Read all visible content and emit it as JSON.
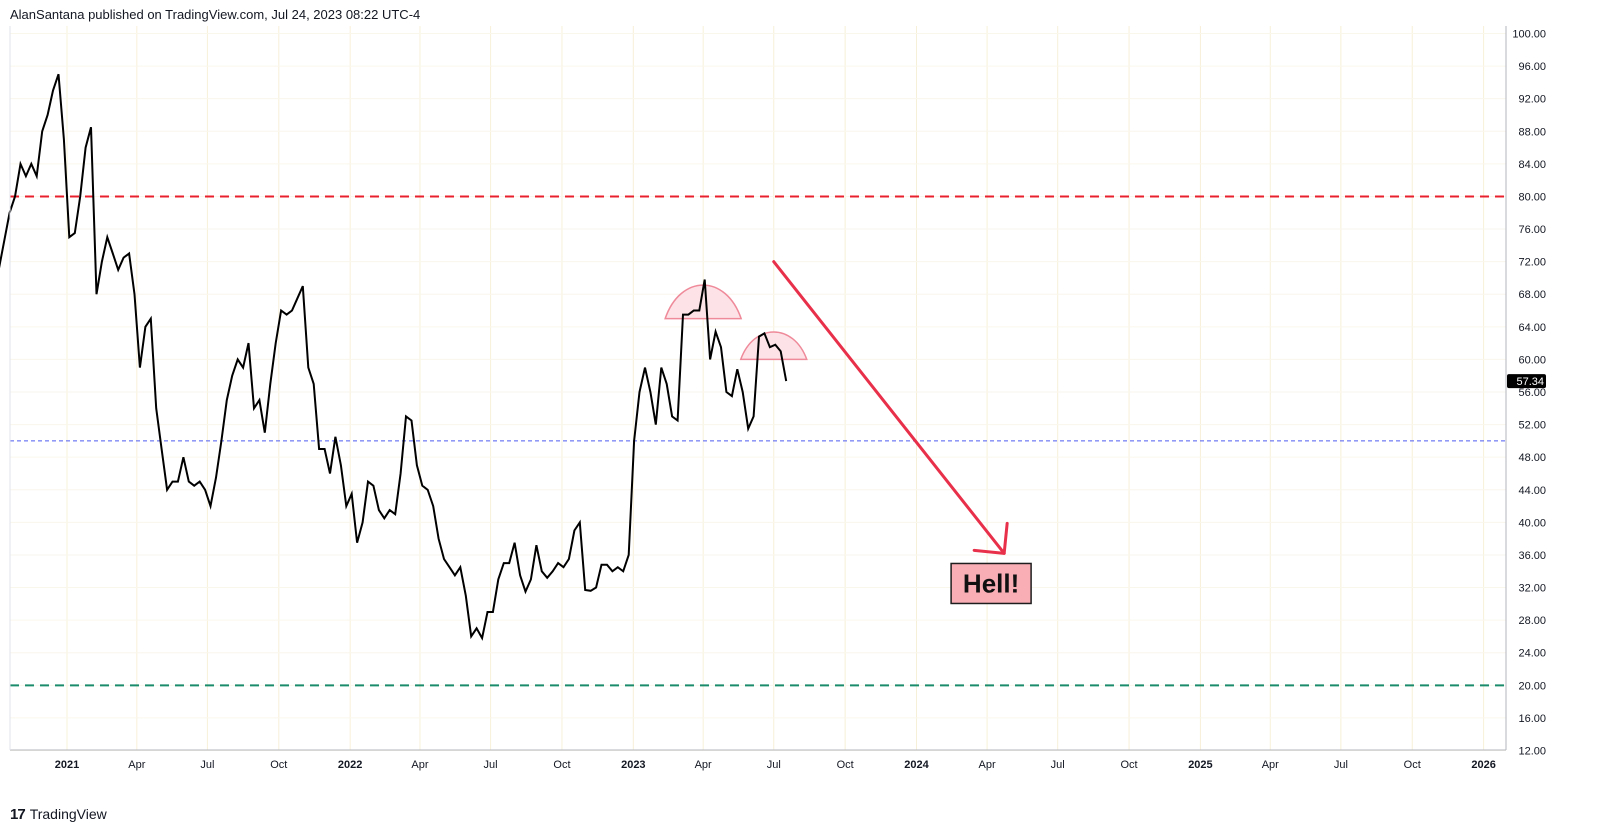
{
  "header": {
    "text": "AlanSantana published on TradingView.com, Jul 24, 2023 08:22 UTC-4"
  },
  "footer": {
    "logo": "17",
    "brand": "TradingView"
  },
  "colors": {
    "price_line": "#000000",
    "overbought": "#e8202e",
    "midline": "#4f5cf0",
    "oversold": "#1a8b6b",
    "arrow": "#e8304a",
    "arc_fill": "#fde3e8",
    "arc_stroke": "#ef8a9a",
    "label_bg": "#f9aeb6",
    "grid": "#f7f0d8"
  },
  "chart_data": {
    "type": "line",
    "x_unit": "date",
    "ylim": [
      12,
      100
    ],
    "y_ticks": [
      "100.00",
      "96.00",
      "92.00",
      "88.00",
      "84.00",
      "80.00",
      "76.00",
      "72.00",
      "68.00",
      "64.00",
      "60.00",
      "56.00",
      "52.00",
      "48.00",
      "44.00",
      "40.00",
      "36.00",
      "32.00",
      "28.00",
      "24.00",
      "20.00",
      "16.00",
      "12.00"
    ],
    "x_ticks": [
      {
        "date": "2021-01-01",
        "label": "2021",
        "bold": true
      },
      {
        "date": "2021-04-01",
        "label": "Apr",
        "bold": false
      },
      {
        "date": "2021-07-01",
        "label": "Jul",
        "bold": false
      },
      {
        "date": "2021-10-01",
        "label": "Oct",
        "bold": false
      },
      {
        "date": "2022-01-01",
        "label": "2022",
        "bold": true
      },
      {
        "date": "2022-04-01",
        "label": "Apr",
        "bold": false
      },
      {
        "date": "2022-07-01",
        "label": "Jul",
        "bold": false
      },
      {
        "date": "2022-10-01",
        "label": "Oct",
        "bold": false
      },
      {
        "date": "2023-01-01",
        "label": "2023",
        "bold": true
      },
      {
        "date": "2023-04-01",
        "label": "Apr",
        "bold": false
      },
      {
        "date": "2023-07-01",
        "label": "Jul",
        "bold": false
      },
      {
        "date": "2023-10-01",
        "label": "Oct",
        "bold": false
      },
      {
        "date": "2024-01-01",
        "label": "2024",
        "bold": true
      },
      {
        "date": "2024-04-01",
        "label": "Apr",
        "bold": false
      },
      {
        "date": "2024-07-01",
        "label": "Jul",
        "bold": false
      },
      {
        "date": "2024-10-01",
        "label": "Oct",
        "bold": false
      },
      {
        "date": "2025-01-01",
        "label": "2025",
        "bold": true
      },
      {
        "date": "2025-04-01",
        "label": "Apr",
        "bold": false
      },
      {
        "date": "2025-07-01",
        "label": "Jul",
        "bold": false
      },
      {
        "date": "2025-10-01",
        "label": "Oct",
        "bold": false
      },
      {
        "date": "2026-01-01",
        "label": "2026",
        "bold": true
      }
    ],
    "series": [
      {
        "points": [
          [
            "2020-10-05",
            71
          ],
          [
            "2020-10-19",
            78
          ],
          [
            "2020-10-26",
            80
          ],
          [
            "2020-11-02",
            84
          ],
          [
            "2020-11-09",
            82.5
          ],
          [
            "2020-11-16",
            84
          ],
          [
            "2020-11-23",
            82.5
          ],
          [
            "2020-11-30",
            88
          ],
          [
            "2020-12-07",
            90
          ],
          [
            "2020-12-14",
            93
          ],
          [
            "2020-12-21",
            95
          ],
          [
            "2020-12-28",
            87
          ],
          [
            "2021-01-04",
            75
          ],
          [
            "2021-01-11",
            75.5
          ],
          [
            "2021-01-18",
            80
          ],
          [
            "2021-01-25",
            86
          ],
          [
            "2021-02-01",
            88.5
          ],
          [
            "2021-02-08",
            68
          ],
          [
            "2021-02-15",
            72
          ],
          [
            "2021-02-22",
            75
          ],
          [
            "2021-03-01",
            73
          ],
          [
            "2021-03-08",
            71
          ],
          [
            "2021-03-15",
            72.5
          ],
          [
            "2021-03-22",
            73
          ],
          [
            "2021-03-29",
            68
          ],
          [
            "2021-04-05",
            59
          ],
          [
            "2021-04-12",
            64
          ],
          [
            "2021-04-19",
            65
          ],
          [
            "2021-04-26",
            54
          ],
          [
            "2021-05-03",
            49
          ],
          [
            "2021-05-10",
            44
          ],
          [
            "2021-05-17",
            45
          ],
          [
            "2021-05-24",
            45
          ],
          [
            "2021-05-31",
            48
          ],
          [
            "2021-06-07",
            45
          ],
          [
            "2021-06-14",
            44.5
          ],
          [
            "2021-06-21",
            45
          ],
          [
            "2021-06-28",
            44
          ],
          [
            "2021-07-05",
            42
          ],
          [
            "2021-07-12",
            45.5
          ],
          [
            "2021-07-19",
            50
          ],
          [
            "2021-07-26",
            55
          ],
          [
            "2021-08-02",
            58
          ],
          [
            "2021-08-09",
            60
          ],
          [
            "2021-08-16",
            59
          ],
          [
            "2021-08-23",
            62
          ],
          [
            "2021-08-30",
            54
          ],
          [
            "2021-09-06",
            55
          ],
          [
            "2021-09-13",
            51
          ],
          [
            "2021-09-20",
            57
          ],
          [
            "2021-09-27",
            62
          ],
          [
            "2021-10-04",
            66
          ],
          [
            "2021-10-11",
            65.5
          ],
          [
            "2021-10-18",
            66
          ],
          [
            "2021-10-25",
            67.5
          ],
          [
            "2021-11-01",
            69
          ],
          [
            "2021-11-08",
            59
          ],
          [
            "2021-11-15",
            57
          ],
          [
            "2021-11-22",
            49
          ],
          [
            "2021-11-29",
            49
          ],
          [
            "2021-12-06",
            46
          ],
          [
            "2021-12-13",
            50.5
          ],
          [
            "2021-12-20",
            47
          ],
          [
            "2021-12-27",
            42
          ],
          [
            "2022-01-03",
            43.5
          ],
          [
            "2022-01-10",
            37.5
          ],
          [
            "2022-01-17",
            40
          ],
          [
            "2022-01-24",
            45
          ],
          [
            "2022-01-31",
            44.5
          ],
          [
            "2022-02-07",
            41.5
          ],
          [
            "2022-02-14",
            40.5
          ],
          [
            "2022-02-21",
            41.5
          ],
          [
            "2022-02-28",
            41
          ],
          [
            "2022-03-07",
            46
          ],
          [
            "2022-03-14",
            53
          ],
          [
            "2022-03-21",
            52.5
          ],
          [
            "2022-03-28",
            47
          ],
          [
            "2022-04-04",
            44.5
          ],
          [
            "2022-04-11",
            44
          ],
          [
            "2022-04-18",
            42
          ],
          [
            "2022-04-25",
            38
          ],
          [
            "2022-05-02",
            35.5
          ],
          [
            "2022-05-09",
            34.5
          ],
          [
            "2022-05-16",
            33.5
          ],
          [
            "2022-05-23",
            34.5
          ],
          [
            "2022-05-30",
            31
          ],
          [
            "2022-06-06",
            26
          ],
          [
            "2022-06-13",
            27
          ],
          [
            "2022-06-20",
            25.8
          ],
          [
            "2022-06-27",
            29
          ],
          [
            "2022-07-04",
            29
          ],
          [
            "2022-07-11",
            33
          ],
          [
            "2022-07-18",
            35
          ],
          [
            "2022-07-25",
            35
          ],
          [
            "2022-08-01",
            37.5
          ],
          [
            "2022-08-08",
            33.5
          ],
          [
            "2022-08-15",
            31.5
          ],
          [
            "2022-08-22",
            33
          ],
          [
            "2022-08-29",
            37.2
          ],
          [
            "2022-09-05",
            34
          ],
          [
            "2022-09-12",
            33.2
          ],
          [
            "2022-09-19",
            34
          ],
          [
            "2022-09-26",
            35
          ],
          [
            "2022-10-03",
            34.5
          ],
          [
            "2022-10-10",
            35.5
          ],
          [
            "2022-10-17",
            39
          ],
          [
            "2022-10-24",
            40
          ],
          [
            "2022-10-31",
            31.7
          ],
          [
            "2022-11-07",
            31.6
          ],
          [
            "2022-11-14",
            32
          ],
          [
            "2022-11-21",
            34.8
          ],
          [
            "2022-11-28",
            34.8
          ],
          [
            "2022-12-05",
            34
          ],
          [
            "2022-12-12",
            34.5
          ],
          [
            "2022-12-19",
            34
          ],
          [
            "2022-12-26",
            36
          ],
          [
            "2023-01-02",
            50
          ],
          [
            "2023-01-09",
            56
          ],
          [
            "2023-01-16",
            59
          ],
          [
            "2023-01-23",
            56
          ],
          [
            "2023-01-30",
            52
          ],
          [
            "2023-02-06",
            59
          ],
          [
            "2023-02-13",
            57
          ],
          [
            "2023-02-20",
            53
          ],
          [
            "2023-02-27",
            52.5
          ],
          [
            "2023-03-06",
            65.5
          ],
          [
            "2023-03-13",
            65.5
          ],
          [
            "2023-03-20",
            66
          ],
          [
            "2023-03-27",
            66
          ],
          [
            "2023-04-03",
            69.8
          ],
          [
            "2023-04-10",
            60
          ],
          [
            "2023-04-17",
            63.4
          ],
          [
            "2023-04-24",
            61.5
          ],
          [
            "2023-05-01",
            56
          ],
          [
            "2023-05-08",
            55.5
          ],
          [
            "2023-05-15",
            58.8
          ],
          [
            "2023-05-22",
            56
          ],
          [
            "2023-05-29",
            51.5
          ],
          [
            "2023-06-05",
            53
          ],
          [
            "2023-06-12",
            62.8
          ],
          [
            "2023-06-19",
            63.2
          ],
          [
            "2023-06-26",
            61.5
          ],
          [
            "2023-07-03",
            61.8
          ],
          [
            "2023-07-10",
            61
          ],
          [
            "2023-07-17",
            57.34
          ]
        ]
      }
    ],
    "last_value_label": "57.34",
    "horizontal_lines": [
      {
        "value": 80,
        "style": "dashed",
        "color_key": "overbought"
      },
      {
        "value": 50,
        "style": "dashed",
        "color_key": "midline"
      },
      {
        "value": 20,
        "style": "dashed",
        "color_key": "oversold"
      }
    ],
    "annotations": {
      "arcs": [
        {
          "center_date": "2023-04-01",
          "peak": 70,
          "base": 65
        },
        {
          "center_date": "2023-07-01",
          "peak": 64,
          "base": 60
        }
      ],
      "arrow": {
        "from_date": "2023-07-01",
        "from_value": 72,
        "to_date": "2024-04-23",
        "to_value": 36.2
      },
      "label": {
        "text": "Hell!",
        "date": "2024-04-01",
        "value": 32.5
      }
    }
  }
}
